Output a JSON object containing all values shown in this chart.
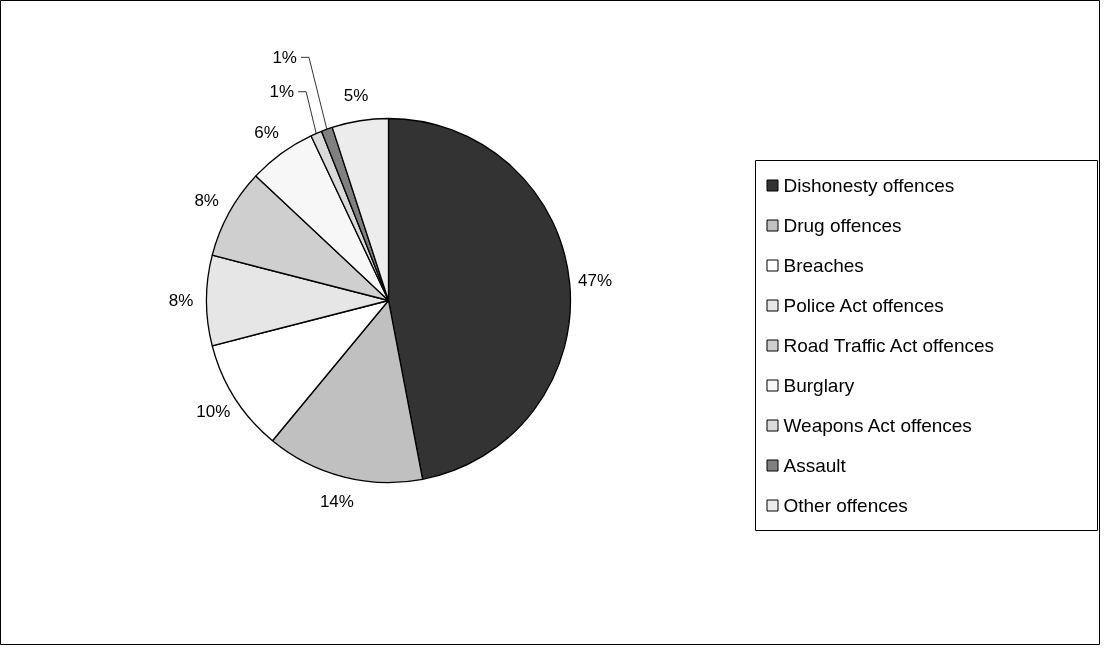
{
  "chart_data": {
    "type": "pie",
    "categories": [
      "Dishonesty offences",
      "Drug offences",
      "Breaches",
      "Police Act offences",
      "Road Traffic Act offences",
      "Burglary",
      "Weapons Act offences",
      "Assault",
      "Other offences"
    ],
    "values": [
      47,
      14,
      10,
      8,
      8,
      6,
      1,
      1,
      5
    ],
    "colors": [
      "#333333",
      "#c0c0c0",
      "#ffffff",
      "#e6e6e6",
      "#cfcfcf",
      "#f7f7f7",
      "#dadada",
      "#808080",
      "#ececec"
    ],
    "value_labels": [
      "47%",
      "14%",
      "10%",
      "8%",
      "8%",
      "6%",
      "1%",
      "1%",
      "5%"
    ],
    "legend": "right"
  }
}
